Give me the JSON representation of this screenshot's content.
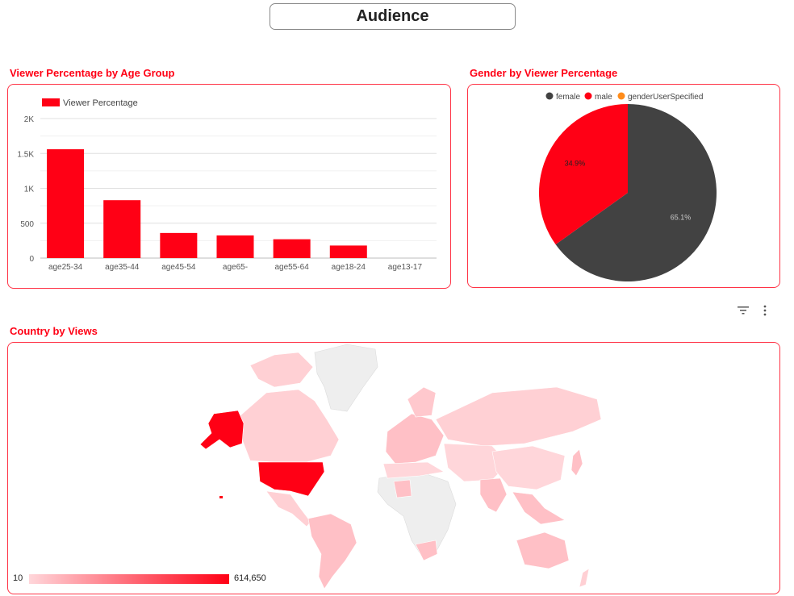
{
  "page": {
    "title": "Audience"
  },
  "age_section": {
    "title": "Viewer Percentage by Age Group"
  },
  "gender_section": {
    "title": "Gender by Viewer Percentage"
  },
  "country_section": {
    "title": "Country by Views",
    "scale_min": "10",
    "scale_max": "614,650"
  },
  "colors": {
    "accent": "#ff0015",
    "female": "#424242",
    "male": "#ff0015",
    "gender_user_specified": "#ff8c1a",
    "map_low": "#ffd0d4",
    "map_high": "#ff0015",
    "map_none": "#eeeeee"
  },
  "toolbar": {
    "filter_icon": "filter-icon",
    "more_icon": "more-vert-icon"
  },
  "chart_data": [
    {
      "type": "bar",
      "legend": [
        "Viewer Percentage"
      ],
      "categories": [
        "age25-34",
        "age35-44",
        "age45-54",
        "age65-",
        "age55-64",
        "age18-24",
        "age13-17"
      ],
      "series": [
        {
          "name": "Viewer Percentage",
          "values": [
            1560,
            830,
            360,
            325,
            270,
            180,
            0
          ]
        }
      ],
      "y_ticks": [
        "0",
        "500",
        "1K",
        "1.5K",
        "2K"
      ],
      "ylim": [
        0,
        2000
      ],
      "grid": true,
      "legend_position": "top-left"
    },
    {
      "type": "pie",
      "legend": [
        "female",
        "male",
        "genderUserSpecified"
      ],
      "labels": [
        "female",
        "male",
        "genderUserSpecified"
      ],
      "values": [
        65.1,
        34.9,
        0
      ],
      "data_labels": [
        "65.1%",
        "34.9%",
        ""
      ],
      "legend_position": "top"
    }
  ]
}
